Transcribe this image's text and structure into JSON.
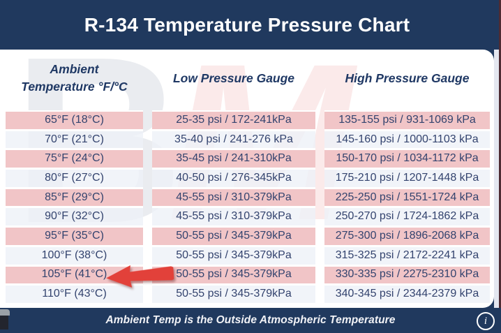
{
  "title": "R-134 Temperature Pressure Chart",
  "chart_data": {
    "type": "table",
    "title": "R-134 Temperature Pressure Chart",
    "columns": [
      "Ambient Temperature °F/°C",
      "Low Pressure Gauge",
      "High Pressure Gauge"
    ],
    "rows": [
      [
        "65°F (18°C)",
        "25-35 psi / 172-241kPa",
        "135-155 psi / 931-1069 kPa"
      ],
      [
        "70°F (21°C)",
        "35-40 psi / 241-276 kPa",
        "145-160 psi / 1000-1103 kPa"
      ],
      [
        "75°F (24°C)",
        "35-45 psi / 241-310kPa",
        "150-170 psi / 1034-1172 kPa"
      ],
      [
        "80°F (27°C)",
        "40-50 psi / 276-345kPa",
        "175-210 psi / 1207-1448 kPa"
      ],
      [
        "85°F (29°C)",
        "45-55 psi / 310-379kPa",
        "225-250 psi / 1551-1724 kPa"
      ],
      [
        "90°F (32°C)",
        "45-55 psi / 310-379kPa",
        "250-270 psi / 1724-1862 kPa"
      ],
      [
        "95°F (35°C)",
        "50-55 psi / 345-379kPa",
        "275-300 psi / 1896-2068 kPa"
      ],
      [
        "100°F (38°C)",
        "50-55 psi / 345-379kPa",
        "315-325 psi / 2172-2241 kPa"
      ],
      [
        "105°F (41°C)",
        "50-55 psi / 345-379kPa",
        "330-335 psi / 2275-2310 kPa"
      ],
      [
        "110°F (43°C)",
        "50-55 psi / 345-379kPa",
        "340-345 psi / 2344-2379 kPa"
      ]
    ],
    "annotation": {
      "arrow_points_to": "105°F (41°C)",
      "arrow_row_index": 8
    }
  },
  "table_header": {
    "ambient_line1": "Ambient",
    "ambient_line2": "Temperature °F/°C",
    "low": "Low Pressure Gauge",
    "high": "High Pressure Gauge"
  },
  "watermark": {
    "letter1": "B",
    "letter2": "M"
  },
  "footer": {
    "note": "Ambient Temp is the Outside Atmospheric Temperature",
    "info_icon_glyph": "i"
  },
  "colors": {
    "navy": "#20395e",
    "row_pink": "#f1c5c7",
    "row_light": "#eef1f8",
    "arrow_red": "#e2413a",
    "header_text": "#1f3864",
    "cell_text": "#33436e"
  }
}
